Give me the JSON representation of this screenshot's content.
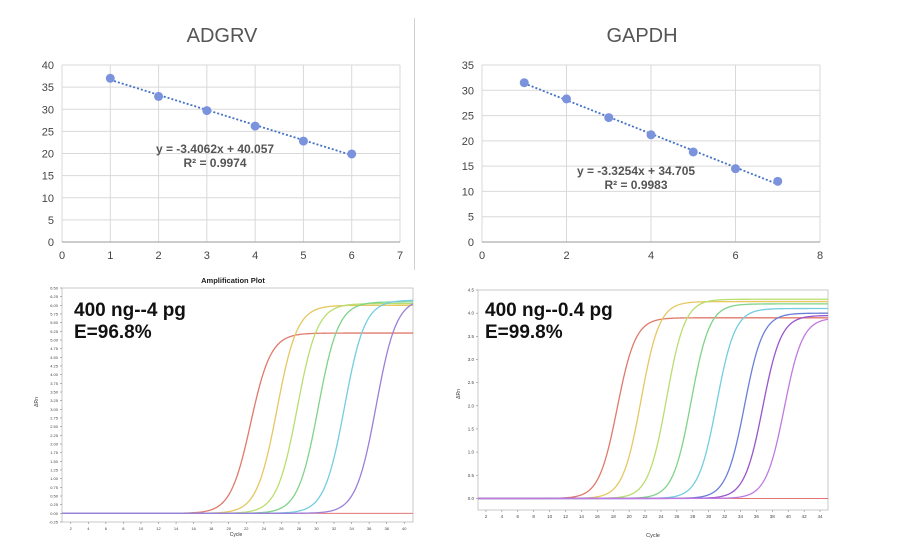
{
  "chart_data": [
    {
      "type": "scatter",
      "title": "ADGRV",
      "x": [
        1,
        2,
        3,
        4,
        5,
        6
      ],
      "y": [
        37.0,
        32.9,
        29.7,
        26.2,
        22.8,
        19.9
      ],
      "trendline": {
        "slope": -3.4062,
        "intercept": 40.057
      },
      "equation": "y = -3.4062x + 40.057",
      "r2": "R² = 0.9974",
      "xlim": [
        0,
        7
      ],
      "ylim": [
        0,
        40
      ],
      "xticks": [
        0,
        1,
        2,
        3,
        4,
        5,
        6,
        7
      ],
      "yticks": [
        0,
        5,
        10,
        15,
        20,
        25,
        30,
        35,
        40
      ],
      "grid": true,
      "point_color": "#7b93dc"
    },
    {
      "type": "scatter",
      "title": "GAPDH",
      "x": [
        1,
        2,
        3,
        4,
        5,
        6,
        7
      ],
      "y": [
        31.5,
        28.3,
        24.6,
        21.2,
        17.8,
        14.5,
        12.0
      ],
      "trendline": {
        "slope": -3.3254,
        "intercept": 34.705
      },
      "equation": "y = -3.3254x + 34.705",
      "r2": "R² = 0.9983",
      "xlim": [
        0,
        8
      ],
      "ylim": [
        0,
        35
      ],
      "xticks": [
        0,
        2,
        4,
        6,
        8
      ],
      "yticks": [
        0,
        5,
        10,
        15,
        20,
        25,
        30,
        35
      ],
      "grid": true,
      "point_color": "#7b93dc"
    },
    {
      "type": "line",
      "title": "Amplification Plot",
      "ylabel": "ΔRn",
      "xlabel": "Cycle",
      "overlay": [
        "400 ng--4 pg",
        "E=96.8%"
      ],
      "xlim": [
        1,
        41
      ],
      "ylim": [
        -0.25,
        6.5
      ],
      "xticks": [
        2,
        4,
        6,
        8,
        10,
        12,
        14,
        16,
        18,
        20,
        22,
        24,
        26,
        28,
        30,
        32,
        34,
        36,
        38,
        40
      ],
      "yticks": [
        -0.25,
        0.0,
        0.25,
        0.5,
        0.75,
        1.0,
        1.25,
        1.5,
        1.75,
        2.0,
        2.25,
        2.5,
        2.75,
        3.0,
        3.25,
        3.5,
        3.75,
        4.0,
        4.25,
        4.5,
        4.75,
        5.0,
        5.25,
        5.5,
        5.75,
        6.0,
        6.25,
        6.5
      ],
      "ytick_labels": [
        "-0.25",
        "0.00",
        "0.25",
        "0.50",
        "0.75",
        "1.00",
        "1.25",
        "1.50",
        "1.75",
        "2.00",
        "2.25",
        "2.50",
        "2.75",
        "3.00",
        "3.25",
        "3.50",
        "3.75",
        "4.00",
        "4.25",
        "4.50",
        "4.75",
        "5.00",
        "5.25",
        "5.50",
        "5.75",
        "6.00",
        "6.25",
        "6.50"
      ],
      "series": [
        {
          "ct": 22.5,
          "plateau": 5.2,
          "color": "#e07a6a"
        },
        {
          "ct": 25.5,
          "plateau": 6.0,
          "color": "#e6c760"
        },
        {
          "ct": 27.8,
          "plateau": 6.05,
          "color": "#b9de6f"
        },
        {
          "ct": 30.2,
          "plateau": 6.1,
          "color": "#7fd48a"
        },
        {
          "ct": 33.2,
          "plateau": 6.15,
          "color": "#74cde0"
        },
        {
          "ct": 36.8,
          "plateau": 6.2,
          "color": "#9b7fd8"
        }
      ]
    },
    {
      "type": "line",
      "title": "",
      "ylabel": "ΔRn",
      "xlabel": "Cycle",
      "overlay": [
        "400 ng--0.4 pg",
        "E=99.8%"
      ],
      "xlim": [
        1,
        45
      ],
      "ylim": [
        -0.25,
        4.5
      ],
      "xticks": [
        2,
        4,
        6,
        8,
        10,
        12,
        14,
        16,
        18,
        20,
        22,
        24,
        26,
        28,
        30,
        32,
        34,
        36,
        38,
        40,
        42,
        44
      ],
      "yticks": [
        0.0,
        0.5,
        1.0,
        1.5,
        2.0,
        2.5,
        3.0,
        3.5,
        4.0,
        4.5
      ],
      "ytick_labels": [
        "0.0",
        "0.5",
        "1.0",
        "1.5",
        "2.0",
        "2.5",
        "3.0",
        "3.5",
        "4.0",
        "4.5"
      ],
      "series": [
        {
          "ct": 18.5,
          "plateau": 3.9,
          "color": "#e07a6a"
        },
        {
          "ct": 21.5,
          "plateau": 4.25,
          "color": "#e6c760"
        },
        {
          "ct": 24.7,
          "plateau": 4.3,
          "color": "#b9de6f"
        },
        {
          "ct": 27.8,
          "plateau": 4.2,
          "color": "#7fd48a"
        },
        {
          "ct": 31.0,
          "plateau": 4.1,
          "color": "#74cde0"
        },
        {
          "ct": 34.5,
          "plateau": 4.0,
          "color": "#6b7fd8"
        },
        {
          "ct": 36.8,
          "plateau": 3.95,
          "color": "#9a55cc"
        },
        {
          "ct": 39.5,
          "plateau": 3.9,
          "color": "#c07ae0"
        }
      ]
    }
  ]
}
